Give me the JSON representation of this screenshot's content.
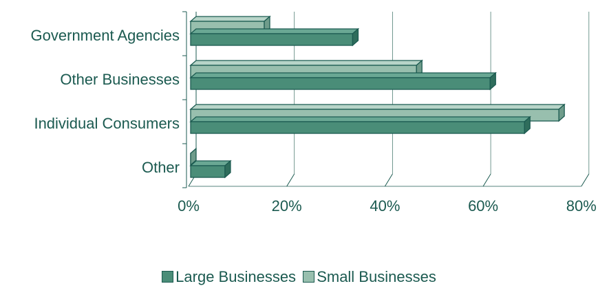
{
  "chart_data": {
    "type": "bar",
    "orientation": "horizontal",
    "categories": [
      "Government Agencies",
      "Other Businesses",
      "Individual Consumers",
      "Other"
    ],
    "series": [
      {
        "name": "Large Businesses",
        "values": [
          33,
          61,
          68,
          7
        ],
        "color": "#4a8d78"
      },
      {
        "name": "Small Businesses",
        "values": [
          15,
          46,
          75,
          0
        ],
        "color": "#98bfae"
      }
    ],
    "x_ticks": [
      "0%",
      "20%",
      "40%",
      "60%",
      "80%"
    ],
    "xlim": [
      0,
      80
    ],
    "grid": "vertical",
    "legend_position": "bottom",
    "title": "",
    "xlabel": "",
    "ylabel": ""
  },
  "colors": {
    "text": "#1b5a50",
    "edge": "#1b5a50",
    "grid": "#4f7f74"
  }
}
